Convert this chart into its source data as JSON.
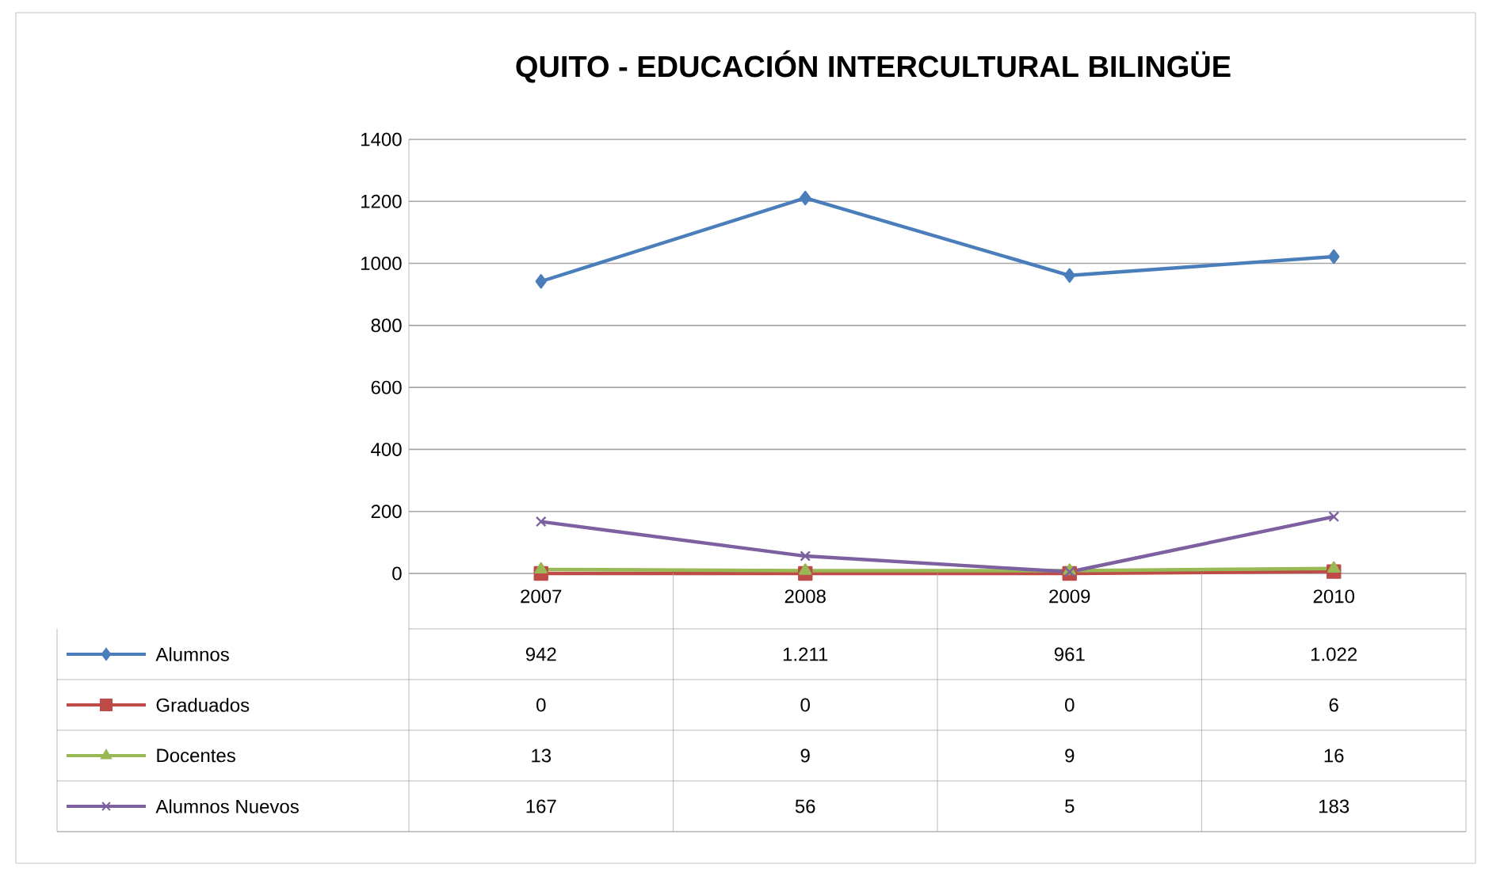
{
  "chart_data": {
    "type": "line",
    "title": "QUITO - EDUCACIÓN INTERCULTURAL BILINGÜE",
    "categories": [
      "2007",
      "2008",
      "2009",
      "2010"
    ],
    "series": [
      {
        "name": "Alumnos",
        "color": "#4a7ebb",
        "marker": "diamond",
        "values": [
          942,
          1211,
          961,
          1022
        ],
        "value_labels": [
          "942",
          "1.211",
          "961",
          "1.022"
        ]
      },
      {
        "name": "Graduados",
        "color": "#be4b48",
        "marker": "square",
        "values": [
          0,
          0,
          0,
          6
        ],
        "value_labels": [
          "0",
          "0",
          "0",
          "6"
        ]
      },
      {
        "name": "Docentes",
        "color": "#98b954",
        "marker": "triangle",
        "values": [
          13,
          9,
          9,
          16
        ],
        "value_labels": [
          "13",
          "9",
          "9",
          "16"
        ]
      },
      {
        "name": "Alumnos Nuevos",
        "color": "#7d60a0",
        "marker": "cross",
        "values": [
          167,
          56,
          5,
          183
        ],
        "value_labels": [
          "167",
          "56",
          "5",
          "183"
        ]
      }
    ],
    "ylim": [
      0,
      1400
    ],
    "yticks": [
      0,
      200,
      400,
      600,
      800,
      1000,
      1200,
      1400
    ],
    "grid": "y",
    "legend": "bottom",
    "line_style": "solid"
  }
}
